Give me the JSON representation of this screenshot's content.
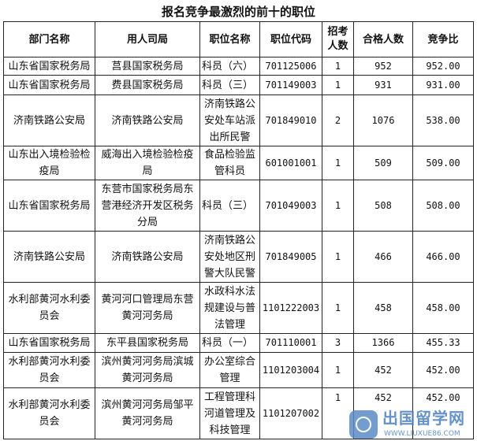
{
  "title": "报名竞争最激烈的前十的职位",
  "headers": [
    "部门名称",
    "用人司局",
    "职位名称",
    "职位代码",
    "招考人数",
    "合格人数",
    "竞争比"
  ],
  "rows": [
    {
      "dept": "山东省国家税务局",
      "bureau": "莒县国家税务局",
      "position": "科员（六）",
      "code": "701125006",
      "quota": "1",
      "qualified": "952",
      "ratio": "952.00"
    },
    {
      "dept": "山东省国家税务局",
      "bureau": "费县国家税务局",
      "position": "科员（三）",
      "code": "701149003",
      "quota": "1",
      "qualified": "931",
      "ratio": "931.00"
    },
    {
      "dept": "济南铁路公安局",
      "bureau": "济南铁路公安局",
      "position": "济南铁路公安处车站派出所民警",
      "code": "701849010",
      "quota": "2",
      "qualified": "1076",
      "ratio": "538.00"
    },
    {
      "dept": "山东出入境检验检疫局",
      "bureau": "威海出入境检验检疫局",
      "position": "食品检验监管科员",
      "code": "601001001",
      "quota": "1",
      "qualified": "509",
      "ratio": "509.00"
    },
    {
      "dept": "山东省国家税务局",
      "bureau": "东营市国家税务局东营港经济开发区税务分局",
      "position": "科员（三）",
      "code": "701049003",
      "quota": "1",
      "qualified": "508",
      "ratio": "508.00"
    },
    {
      "dept": "济南铁路公安局",
      "bureau": "济南铁路公安局",
      "position": "济南铁路公安处地区刑警大队民警",
      "code": "701849005",
      "quota": "1",
      "qualified": "466",
      "ratio": "466.00"
    },
    {
      "dept": "水利部黄河水利委员会",
      "bureau": "黄河河口管理局东营黄河河务局",
      "position": "水政科水法规建设与普法管理",
      "code": "1101222003",
      "quota": "1",
      "qualified": "458",
      "ratio": "458.00"
    },
    {
      "dept": "山东省国家税务局",
      "bureau": "东平县国家税务局",
      "position": "科员（一）",
      "code": "701110001",
      "quota": "3",
      "qualified": "1366",
      "ratio": "455.33"
    },
    {
      "dept": "水利部黄河水利委员会",
      "bureau": "滨州黄河河务局滨城黄河河务局",
      "position": "办公室综合管理",
      "code": "1101203004",
      "quota": "1",
      "qualified": "452",
      "ratio": "452.00"
    },
    {
      "dept": "水利部黄河水利委员会",
      "bureau": "滨州黄河河务局邹平黄河河务局",
      "position": "工程管理科河道管理及科技管理",
      "code": "1101207002",
      "quota": "1",
      "qualified": "452",
      "ratio": "452.00"
    }
  ],
  "watermark": {
    "name": "出国留学网",
    "url": "WWW.LIUXUE86.COM"
  }
}
